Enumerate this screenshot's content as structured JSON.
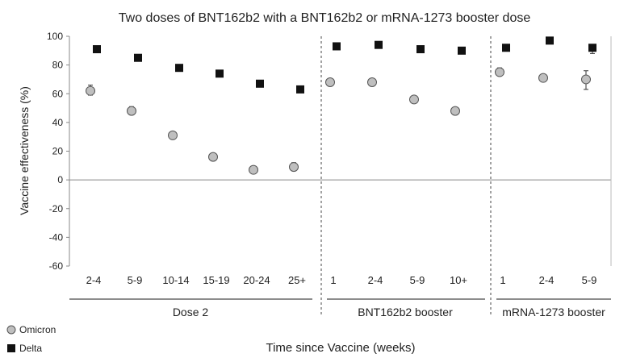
{
  "chart_data": {
    "type": "scatter",
    "title": "Two doses of BNT162b2 with a BNT162b2 or mRNA-1273 booster dose",
    "xlabel": "Time since Vaccine (weeks)",
    "ylabel": "Vaccine effectiveness (%)",
    "ylim": [
      -60,
      100
    ],
    "yticks": [
      "100",
      "80",
      "60",
      "40",
      "20",
      "0",
      "-20",
      "-40",
      "-60"
    ],
    "categories": [
      "2-4",
      "5-9",
      "10-14",
      "15-19",
      "20-24",
      "25+",
      "1",
      "2-4",
      "5-9",
      "10+",
      "1",
      "2-4",
      "5-9"
    ],
    "groups": [
      {
        "label": "Dose 2",
        "start": 0,
        "end": 5
      },
      {
        "label": "BNT162b2 booster",
        "start": 6,
        "end": 9
      },
      {
        "label": "mRNA-1273 booster",
        "start": 10,
        "end": 12
      }
    ],
    "series": [
      {
        "name": "Omicron",
        "marker": "circle",
        "color": "#bfbfbf",
        "values": [
          62,
          48,
          31,
          16,
          7,
          9,
          68,
          68,
          56,
          48,
          75,
          71,
          70
        ],
        "error_low": [
          59,
          46,
          31,
          16,
          7,
          7,
          68,
          68,
          56,
          48,
          73,
          70,
          63
        ],
        "error_high": [
          66,
          51,
          31,
          16,
          7,
          12,
          68,
          68,
          56,
          48,
          78,
          73,
          76
        ]
      },
      {
        "name": "Delta",
        "marker": "square",
        "color": "#111111",
        "values": [
          91,
          85,
          78,
          74,
          67,
          63,
          93,
          94,
          91,
          90,
          92,
          97,
          92
        ],
        "error_low": [
          91,
          85,
          78,
          74,
          67,
          63,
          93,
          94,
          91,
          90,
          92,
          97,
          88
        ],
        "error_high": [
          91,
          85,
          78,
          74,
          67,
          63,
          93,
          94,
          91,
          90,
          92,
          97,
          94
        ]
      }
    ],
    "legend": {
      "placement": "bottom-left",
      "entries": [
        "Omicron",
        "Delta"
      ]
    },
    "grid": false
  }
}
